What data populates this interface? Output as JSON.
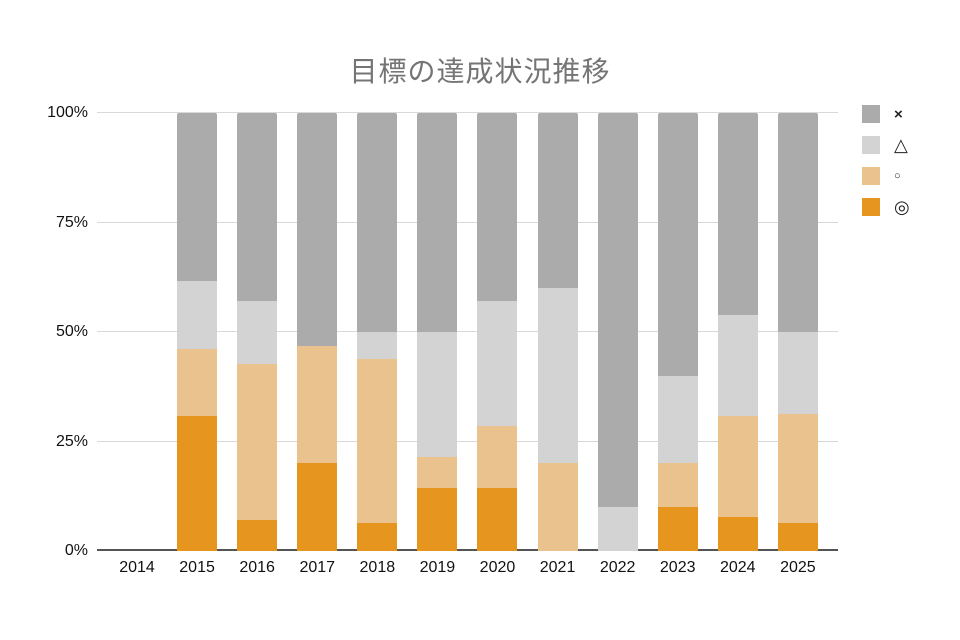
{
  "title": "目標の達成状況推移",
  "colors": {
    "background": "#ffffff",
    "title_text": "#757575",
    "axis_line": "#545454",
    "gridline": "#d9d9d9",
    "tick_text": "#111111",
    "series_best": "#e6951f",
    "series_good": "#eac28e",
    "series_fair": "#d3d3d3",
    "series_miss": "#ababab"
  },
  "legend": {
    "position": "right",
    "items": [
      {
        "symbol": "×",
        "color": "#ababab"
      },
      {
        "symbol": "△",
        "color": "#d3d3d3"
      },
      {
        "symbol": "○",
        "color": "#eac28e"
      },
      {
        "symbol": "◎",
        "color": "#e6951f"
      }
    ]
  },
  "chart_data": {
    "type": "bar",
    "stacked": true,
    "stack_unit": "percent_of_total",
    "title": "目標の達成状況推移",
    "xlabel": "",
    "ylabel": "",
    "categories": [
      "2014",
      "2015",
      "2016",
      "2017",
      "2018",
      "2019",
      "2020",
      "2021",
      "2022",
      "2023",
      "2024",
      "2025"
    ],
    "series": [
      {
        "name": "◎",
        "color": "#e6951f",
        "values": [
          0,
          30.8,
          7.1,
          20.0,
          6.3,
          14.3,
          14.3,
          0,
          0,
          10.0,
          7.7,
          6.3
        ]
      },
      {
        "name": "○",
        "color": "#eac28e",
        "values": [
          0,
          15.4,
          35.7,
          26.7,
          37.5,
          7.1,
          14.3,
          20.0,
          0,
          10.0,
          23.1,
          25.0
        ]
      },
      {
        "name": "△",
        "color": "#d3d3d3",
        "values": [
          0,
          15.4,
          14.3,
          0,
          6.2,
          28.6,
          28.5,
          40.0,
          10.0,
          20.0,
          23.1,
          18.7
        ]
      },
      {
        "name": "×",
        "color": "#ababab",
        "values": [
          0,
          38.4,
          42.9,
          53.3,
          50.0,
          50.0,
          42.9,
          40.0,
          90.0,
          60.0,
          46.1,
          50.0
        ]
      }
    ],
    "yticks": [
      "0%",
      "25%",
      "50%",
      "75%",
      "100%"
    ],
    "ylim": [
      0,
      100
    ],
    "grid": true,
    "legend_position": "right"
  }
}
